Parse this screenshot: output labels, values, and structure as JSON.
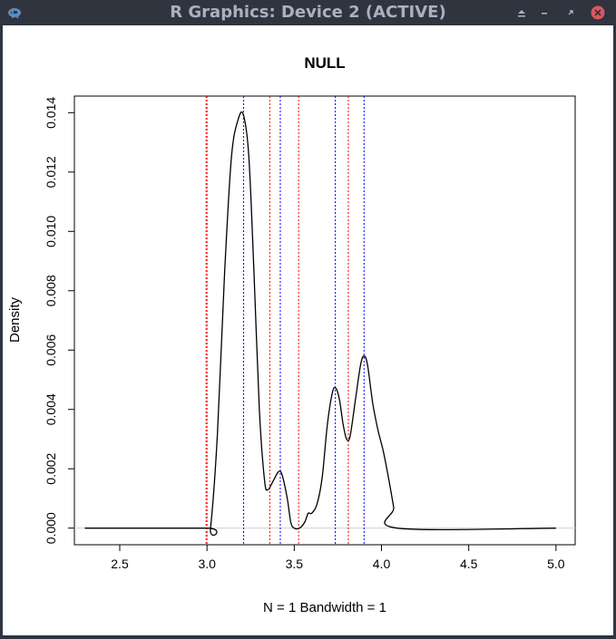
{
  "window": {
    "title": "R Graphics: Device 2 (ACTIVE)",
    "icons": [
      "r-app-icon",
      "shade-icon",
      "minimize-icon",
      "maximize-icon",
      "close-icon"
    ],
    "close_color": "#e0555e"
  },
  "chart_data": {
    "type": "line",
    "title": "NULL",
    "xlabel": "N = 1   Bandwidth = 1",
    "ylabel": "Density",
    "xlim": [
      2.24,
      5.11
    ],
    "ylim": [
      -0.00056,
      0.01456
    ],
    "x_ticks": [
      2.5,
      3.0,
      3.5,
      4.0,
      4.5,
      5.0
    ],
    "x_tick_labels": [
      "2.5",
      "3.0",
      "3.5",
      "4.0",
      "4.5",
      "5.0"
    ],
    "y_ticks": [
      0.0,
      0.002,
      0.004,
      0.006,
      0.008,
      0.01,
      0.012,
      0.014
    ],
    "y_tick_labels": [
      "0.000",
      "0.002",
      "0.004",
      "0.006",
      "0.008",
      "0.010",
      "0.012",
      "0.014"
    ],
    "grid": false,
    "zero_line": true,
    "series": [
      {
        "color": "#000000",
        "x": [
          2.3,
          3.0,
          3.02,
          3.06,
          3.1,
          3.14,
          3.18,
          3.21,
          3.24,
          3.27,
          3.3,
          3.33,
          3.35,
          3.38,
          3.41,
          3.43,
          3.46,
          3.48,
          3.5,
          3.53,
          3.56,
          3.58,
          3.6,
          3.63,
          3.66,
          3.69,
          3.72,
          3.74,
          3.76,
          3.78,
          3.8,
          3.82,
          3.85,
          3.88,
          3.9,
          3.92,
          3.95,
          3.98,
          4.01,
          4.04,
          4.07,
          4.09,
          5.0
        ],
        "y": [
          0.0,
          0.0,
          0.0,
          0.0032,
          0.0085,
          0.0125,
          0.0138,
          0.0139,
          0.0125,
          0.0085,
          0.004,
          0.0016,
          0.0013,
          0.0016,
          0.0019,
          0.0018,
          0.001,
          0.0002,
          0.0,
          0.0,
          0.0002,
          0.0005,
          0.0005,
          0.0008,
          0.0017,
          0.0035,
          0.0046,
          0.0047,
          0.0043,
          0.0035,
          0.003,
          0.0031,
          0.0043,
          0.0055,
          0.0058,
          0.0055,
          0.0042,
          0.0033,
          0.0026,
          0.0017,
          0.0007,
          0.0,
          0.0
        ]
      }
    ],
    "vlines_red": [
      2.995,
      3.0,
      3.36,
      3.525,
      3.81
    ],
    "vlines_blue": [
      3.21,
      3.42,
      3.735,
      3.9
    ],
    "red_color": "#ff0000",
    "blue_color": "#0000ff"
  }
}
